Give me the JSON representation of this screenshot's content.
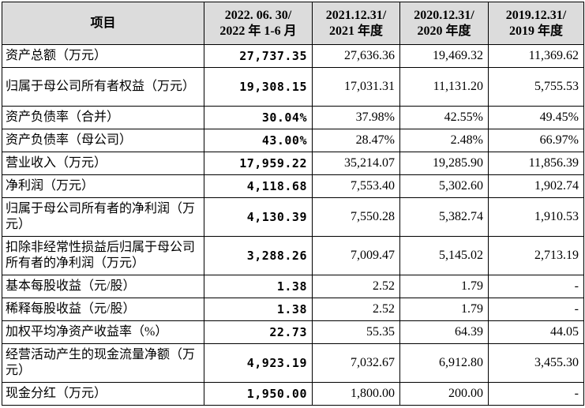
{
  "table": {
    "header": [
      [
        "项目"
      ],
      [
        "2022. 06. 30/",
        "2022 年 1-6 月"
      ],
      [
        "2021.12.31/",
        "2021 年度"
      ],
      [
        "2020.12.31/",
        "2020 年度"
      ],
      [
        "2019.12.31/",
        "2019 年度"
      ]
    ],
    "rows": [
      [
        "资产总额（万元）",
        "27,737.35",
        "27,636.36",
        "19,469.32",
        "11,369.62"
      ],
      [
        "归属于母公司所有者权益（万元）",
        "19,308.15",
        "17,031.31",
        "11,131.20",
        "5,755.53"
      ],
      [
        "资产负债率（合并）",
        "30.04%",
        "37.98%",
        "42.55%",
        "49.45%"
      ],
      [
        "资产负债率（母公司）",
        "43.00%",
        "28.47%",
        "2.48%",
        "66.97%"
      ],
      [
        "营业收入（万元）",
        "17,959.22",
        "35,214.07",
        "19,285.90",
        "11,856.39"
      ],
      [
        "净利润（万元）",
        "4,118.68",
        "7,553.40",
        "5,302.60",
        "1,902.74"
      ],
      [
        "归属于母公司所有者的净利润（万元）",
        "4,130.39",
        "7,550.28",
        "5,382.74",
        "1,910.53"
      ],
      [
        "扣除非经常性损益后归属于母公司所有者的净利润（万元）",
        "3,288.26",
        "7,009.47",
        "5,145.02",
        "2,713.19"
      ],
      [
        "基本每股收益（元/股）",
        "1.38",
        "2.52",
        "1.79",
        "-"
      ],
      [
        "稀释每股收益（元/股）",
        "1.38",
        "2.52",
        "1.79",
        "-"
      ],
      [
        "加权平均净资产收益率（%）",
        "22.73",
        "55.35",
        "64.39",
        "44.05"
      ],
      [
        "经营活动产生的现金流量净额（万元）",
        "4,923.19",
        "7,032.67",
        "6,912.80",
        "3,455.30"
      ],
      [
        "现金分红（万元）",
        "1,950.00",
        "1,800.00",
        "200.00",
        "-"
      ]
    ]
  }
}
